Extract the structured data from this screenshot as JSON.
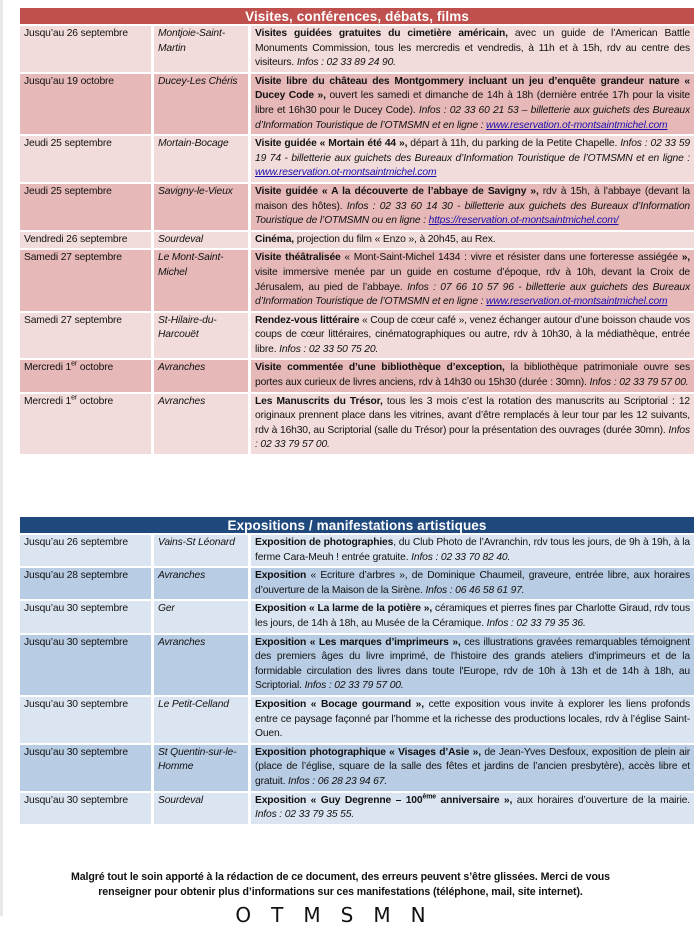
{
  "section1": {
    "title": "Visites, conférences, débats, films",
    "header_color": "#c0504d",
    "row_colors": [
      "#f2dcdb",
      "#e6b9b8"
    ],
    "rows": [
      {
        "date": "Jusqu’au 26 septembre",
        "location": "Montjoie-Saint-Martin",
        "desc": [
          {
            "t": "Visites guidées gratuites du cimetière américain,",
            "s": "b"
          },
          {
            "t": " avec un guide de l’American Battle Monuments Commission, tous les mercredis et vendredis, à 11h et à 15h, rdv au centre des visiteurs. "
          },
          {
            "t": "Infos : 02 33 89 24 90.",
            "s": "i"
          }
        ]
      },
      {
        "date": "Jusqu’au 19 octobre",
        "location": "Ducey-Les Chéris",
        "desc": [
          {
            "t": "Visite libre du château des Montgommery incluant un jeu d’enquête grandeur nature « Ducey Code »,",
            "s": "b"
          },
          {
            "t": " ouvert les samedi et dimanche de 14h à 18h (dernière entrée 17h pour la visite libre et 16h30 pour le Ducey Code). "
          },
          {
            "t": "Infos : 02 33 60 21 53 – billetterie aux guichets des Bureaux d’Information Touristique de l’OTMSMN et en ligne : ",
            "s": "i"
          },
          {
            "t": "www.reservation.ot-montsaintmichel.com",
            "s": "a"
          }
        ]
      },
      {
        "date": "Jeudi 25 septembre",
        "location": "Mortain-Bocage",
        "desc": [
          {
            "t": "Visite guidée « Mortain été 44 »,",
            "s": "b"
          },
          {
            "t": " départ à 11h, du parking de la Petite Chapelle. "
          },
          {
            "t": "Infos : 02 33 59 19 74 - billetterie aux guichets des Bureaux d’Information Touristique de l’OTMSMN et en ligne : ",
            "s": "i"
          },
          {
            "t": "www.reservation.ot-montsaintmichel.com",
            "s": "a"
          }
        ]
      },
      {
        "date": "Jeudi 25 septembre",
        "location": "Savigny-le-Vieux",
        "desc": [
          {
            "t": "Visite guidée « A la découverte de l’abbaye de Savigny »,",
            "s": "b"
          },
          {
            "t": " rdv à 15h, à l’abbaye (devant la maison des hôtes). "
          },
          {
            "t": "Infos : 02 33 60 14 30 - billetterie aux guichets des Bureaux d’Information Touristique de l’OTMSMN ou en ligne : ",
            "s": "i"
          },
          {
            "t": "https://reservation.ot-montsaintmichel.com/",
            "s": "a"
          }
        ]
      },
      {
        "date": "Vendredi 26 septembre",
        "location": "Sourdeval",
        "desc": [
          {
            "t": "Cinéma,",
            "s": "b"
          },
          {
            "t": " projection du film « Enzo », à 20h45, au Rex."
          }
        ]
      },
      {
        "date": "Samedi 27 septembre",
        "location": "Le Mont-Saint-Michel",
        "desc": [
          {
            "t": "Visite théâtralisée",
            "s": "b"
          },
          {
            "t": " « Mont-Saint-Michel 1434 : vivre et résister dans une forteresse assiégée "
          },
          {
            "t": "»,",
            "s": "b"
          },
          {
            "t": " visite immersive menée par un guide en costume d’époque, rdv à 10h, devant la Croix de Jérusalem, au pied de l’abbaye. "
          },
          {
            "t": "Infos : 07 66 10 57 96 - billetterie aux guichets des Bureaux d’Information Touristique de l’OTMSMN et en ligne : ",
            "s": "i"
          },
          {
            "t": "www.reservation.ot-montsaintmichel.com",
            "s": "a"
          }
        ]
      },
      {
        "date": "Samedi 27 septembre",
        "location": "St-Hilaire-du-Harcouët",
        "desc": [
          {
            "t": "Rendez-vous littéraire",
            "s": "b"
          },
          {
            "t": " « Coup de cœur café », venez échanger autour d’une boisson chaude vos coups de cœur littéraires, cinématographiques ou autre, rdv à 10h30, à la médiathèque, entrée libre. "
          },
          {
            "t": "Infos : 02 33 50 75 20.",
            "s": "i"
          }
        ]
      },
      {
        "date": [
          {
            "t": "Mercredi 1"
          },
          {
            "t": "er",
            "s": "sup"
          },
          {
            "t": " octobre"
          }
        ],
        "location": "Avranches",
        "desc": [
          {
            "t": "Visite commentée d’une bibliothèque d’exception,",
            "s": "b"
          },
          {
            "t": " la bibliothèque patrimoniale ouvre ses portes aux curieux de livres anciens, rdv à 14h30 ou 15h30 (durée : 30mn). "
          },
          {
            "t": "Infos : 02 33 79 57 00.",
            "s": "i"
          }
        ]
      },
      {
        "date": [
          {
            "t": "Mercredi 1"
          },
          {
            "t": "er",
            "s": "sup"
          },
          {
            "t": " octobre"
          }
        ],
        "location": "Avranches",
        "desc": [
          {
            "t": "Les Manuscrits du Trésor,",
            "s": "b"
          },
          {
            "t": " tous les 3 mois c’est la rotation des manuscrits au Scriptorial : 12 originaux prennent place dans les vitrines, avant d’être remplacés à leur tour par les 12 suivants, rdv à 16h30, au Scriptorial (salle du Trésor) pour la présentation des ouvrages (durée 30mn). "
          },
          {
            "t": "Infos : 02 33 79 57 00.",
            "s": "i"
          }
        ]
      }
    ]
  },
  "section2": {
    "title": "Expositions / manifestations artistiques",
    "header_color": "#1f497d",
    "row_colors": [
      "#dbe5f1",
      "#b8cce4"
    ],
    "rows": [
      {
        "date": "Jusqu’au 26 septembre",
        "location": "Vains-St Léonard",
        "desc": [
          {
            "t": "Exposition de photographies",
            "s": "b"
          },
          {
            "t": ", du Club Photo de l’Avranchin, rdv tous les jours, de 9h à 19h, à la ferme Cara-Meuh ! entrée gratuite. "
          },
          {
            "t": "Infos : 02 33 70 82 40.",
            "s": "i"
          }
        ]
      },
      {
        "date": "Jusqu’au 28 septembre",
        "location": "Avranches",
        "desc": [
          {
            "t": "Exposition",
            "s": "b"
          },
          {
            "t": " « Ecriture d’arbres », de Dominique Chaumeil, graveure, entrée libre, aux horaires d’ouverture de la Maison de la Sirène. "
          },
          {
            "t": "Infos : 06 46 58 61 97.",
            "s": "i"
          }
        ]
      },
      {
        "date": "Jusqu’au 30 septembre",
        "location": "Ger",
        "desc": [
          {
            "t": "Exposition « La larme de la potière »,",
            "s": "b"
          },
          {
            "t": " céramiques et pierres fines par Charlotte Giraud, rdv tous les jours, de 14h à 18h, au Musée de la Céramique. "
          },
          {
            "t": "Infos : 02 33 79 35 36.",
            "s": "i"
          }
        ]
      },
      {
        "date": "Jusqu’au 30 septembre",
        "location": "Avranches",
        "desc": [
          {
            "t": "Exposition « Les marques d’imprimeurs »,",
            "s": "b"
          },
          {
            "t": " ces illustrations gravées remarquables témoignent des premiers âges du livre imprimé, de l'histoire des grands ateliers d'imprimeurs et de la formidable circulation des livres dans toute l'Europe, rdv de 10h à 13h et de 14h à 18h, au Scriptorial. "
          },
          {
            "t": "Infos : 02 33 79 57 00.",
            "s": "i"
          }
        ]
      },
      {
        "date": "Jusqu’au 30 septembre",
        "location": "Le Petit-Celland",
        "desc": [
          {
            "t": "Exposition « Bocage gourmand »,",
            "s": "b"
          },
          {
            "t": " cette exposition vous invite à explorer les liens profonds entre ce paysage façonné par l’homme et la richesse des productions locales, rdv à l’église Saint-Ouen."
          }
        ]
      },
      {
        "date": "Jusqu’au 30 septembre",
        "location": "St Quentin-sur-le-Homme",
        "desc": [
          {
            "t": "Exposition photographique « Visages d’Asie »,",
            "s": "b"
          },
          {
            "t": " de Jean-Yves Desfoux, exposition de plein air (place de l’église, square de la salle des fêtes et jardins de l’ancien presbytère), accès libre et gratuit. "
          },
          {
            "t": "Infos : 06 28 23 94 67.",
            "s": "i"
          }
        ]
      },
      {
        "date": "Jusqu’au 30 septembre",
        "location": "Sourdeval",
        "desc": [
          {
            "t": "Exposition « Guy Degrenne – 100",
            "s": "b"
          },
          {
            "t": "ème",
            "s": "bsup"
          },
          {
            "t": " anniversaire »,",
            "s": "b"
          },
          {
            "t": " aux horaires d’ouverture de la mairie. "
          },
          {
            "t": "Infos : 02 33 79 35 55.",
            "s": "i"
          }
        ]
      }
    ]
  },
  "footer": {
    "disclaimer_line1": "Malgré tout le soin apporté à la rédaction de ce document, des erreurs peuvent s’être glissées. Merci de vous",
    "disclaimer_line2": "renseigner pour obtenir plus d’informations sur ces manifestations (téléphone, mail, site internet).",
    "signature": "OTMSMN"
  }
}
